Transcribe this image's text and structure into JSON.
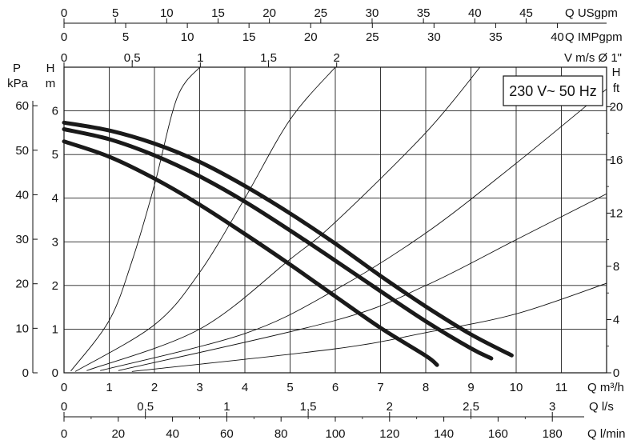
{
  "chart_data": {
    "type": "line",
    "title": "",
    "annotation": "230 V~ 50 Hz",
    "grid": true,
    "x": {
      "label": "Q m³/h",
      "range": [
        0,
        12
      ],
      "ticks": [
        "0",
        "1",
        "2",
        "3",
        "4",
        "5",
        "6",
        "7",
        "8",
        "9",
        "10",
        "11"
      ]
    },
    "y": {
      "label_top": "H",
      "label_unit": "m",
      "range": [
        0,
        7
      ],
      "ticks": [
        "0",
        "1",
        "2",
        "3",
        "4",
        "5",
        "6"
      ]
    },
    "secondary_axes": {
      "top_usgpm": {
        "label": "Q USgpm",
        "ticks": [
          "0",
          "5",
          "10",
          "15",
          "20",
          "25",
          "30",
          "35",
          "40",
          "45"
        ]
      },
      "top_impgpm": {
        "label": "Q IMPgpm",
        "ticks": [
          "0",
          "5",
          "10",
          "15",
          "20",
          "25",
          "30",
          "35",
          "40"
        ]
      },
      "top_velocity": {
        "label": "V m/s Ø 1\"",
        "ticks": [
          "0",
          "0,5",
          "1",
          "1,5",
          "2"
        ]
      },
      "left_pressure": {
        "label_top": "P",
        "label_unit": "kPa",
        "ticks": [
          "0",
          "10",
          "20",
          "30",
          "40",
          "50",
          "60"
        ]
      },
      "right_feet": {
        "label_top": "H",
        "label_unit": "ft",
        "ticks": [
          "0",
          "4",
          "8",
          "12",
          "16",
          "20"
        ]
      },
      "bottom_ls": {
        "label": "Q l/s",
        "ticks": [
          "0",
          "0,5",
          "1",
          "1,5",
          "2",
          "2,5",
          "3"
        ]
      },
      "bottom_lmin": {
        "label": "Q l/min",
        "ticks": [
          "0",
          "20",
          "40",
          "60",
          "80",
          "100",
          "120",
          "140",
          "160",
          "180"
        ]
      }
    },
    "series": [
      {
        "x": [
          0,
          1,
          2,
          3,
          4,
          5,
          6,
          7,
          8,
          9,
          9.9
        ],
        "y": [
          5.73,
          5.55,
          5.25,
          4.83,
          4.28,
          3.65,
          2.96,
          2.22,
          1.52,
          0.88,
          0.4
        ]
      },
      {
        "x": [
          0,
          1,
          2,
          3,
          4,
          5,
          6,
          7,
          8,
          9,
          9.45
        ],
        "y": [
          5.58,
          5.35,
          4.98,
          4.5,
          3.92,
          3.26,
          2.57,
          1.87,
          1.18,
          0.56,
          0.33
        ]
      },
      {
        "x": [
          0,
          1,
          2,
          3,
          4,
          5,
          6,
          7,
          8,
          8.25
        ],
        "y": [
          5.3,
          4.95,
          4.45,
          3.85,
          3.18,
          2.48,
          1.75,
          1.03,
          0.39,
          0.18
        ]
      }
    ],
    "system_curves": [
      {
        "x": [
          0.15,
          1,
          1.5,
          2,
          2.5,
          3
        ],
        "y": [
          0.04,
          1.2,
          2.55,
          4.3,
          6.3,
          7.0
        ]
      },
      {
        "x": [
          0.25,
          2,
          3,
          4,
          5,
          6
        ],
        "y": [
          0.03,
          1.1,
          2.3,
          4.0,
          5.8,
          7.0
        ]
      },
      {
        "x": [
          0.5,
          3,
          5,
          6,
          8,
          9.2
        ],
        "y": [
          0.05,
          1.0,
          2.6,
          3.45,
          5.5,
          7.0
        ]
      },
      {
        "x": [
          0.8,
          4,
          6,
          8,
          10,
          12
        ],
        "y": [
          0.05,
          0.9,
          1.9,
          3.2,
          4.8,
          6.5
        ]
      },
      {
        "x": [
          1.2,
          6,
          8,
          10,
          12
        ],
        "y": [
          0.05,
          1.2,
          2.0,
          3.05,
          4.1
        ]
      },
      {
        "x": [
          1.5,
          6,
          8,
          10,
          12
        ],
        "y": [
          0.03,
          0.55,
          0.92,
          1.35,
          2.05
        ]
      }
    ]
  }
}
